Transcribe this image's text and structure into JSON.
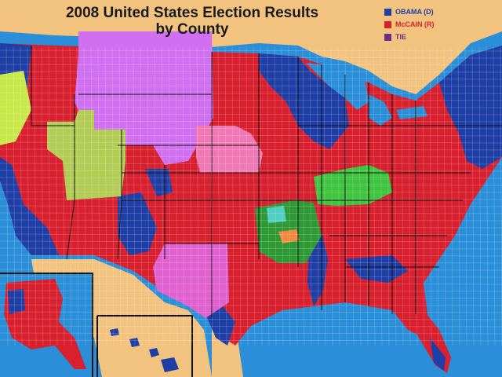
{
  "title": {
    "line1": "2008 United States Election Results",
    "line2": "by County"
  },
  "legend": [
    {
      "label": "OBAMA (D)",
      "color": "#1f3fa6",
      "text_color": "#1f3fa6"
    },
    {
      "label": "McCAIN (R)",
      "color": "#d8202f",
      "text_color": "#d8202f"
    },
    {
      "label": "TIE",
      "color": "#6a2d8a",
      "text_color": "#6a2d8a"
    }
  ],
  "colors": {
    "ocean": "#2a8fd8",
    "foreign_land": "#f2c27f",
    "obama": "#1f3fa6",
    "mccain": "#d8202f",
    "state_border": "#111111",
    "county_border": "#ffffff",
    "third_party_violet": "#d070f0",
    "third_party_lime": "#c8e84a",
    "third_party_olive": "#b2cc55",
    "third_party_pink": "#f078b4",
    "third_party_magenta": "#e060d0",
    "third_party_green": "#3ec43e",
    "third_party_darkgreen": "#2f9a35",
    "third_party_lightgreen": "#66dd55",
    "third_party_teal": "#4ecfc0",
    "third_party_orange": "#f08a40"
  }
}
